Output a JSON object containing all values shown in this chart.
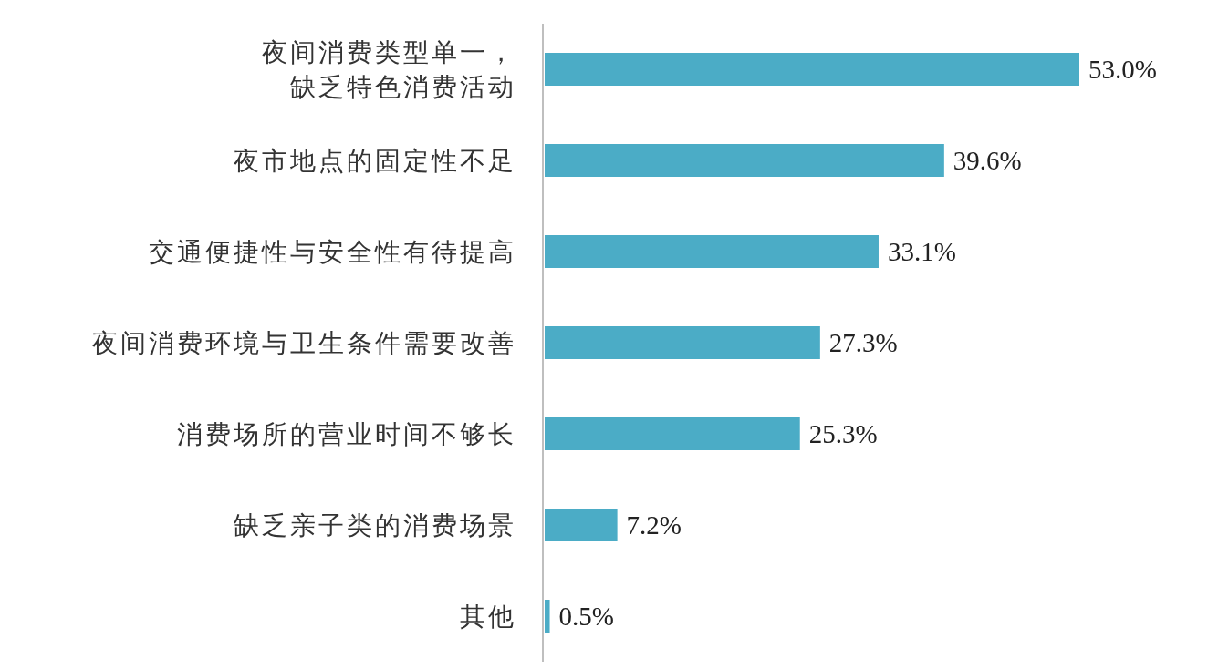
{
  "chart_data": {
    "type": "bar",
    "orientation": "horizontal",
    "categories": [
      "夜间消费类型单一，缺乏特色消费活动",
      "夜市地点的固定性不足",
      "交通便捷性与安全性有待提高",
      "夜间消费环境与卫生条件需要改善",
      "消费场所的营业时间不够长",
      "缺乏亲子类的消费场景",
      "其他"
    ],
    "values": [
      53.0,
      39.6,
      33.1,
      27.3,
      25.3,
      7.2,
      0.5
    ],
    "value_labels": [
      "53.0%",
      "39.6%",
      "33.1%",
      "27.3%",
      "25.3%",
      "7.2%",
      "0.5%"
    ],
    "color": "#4bacc6"
  }
}
